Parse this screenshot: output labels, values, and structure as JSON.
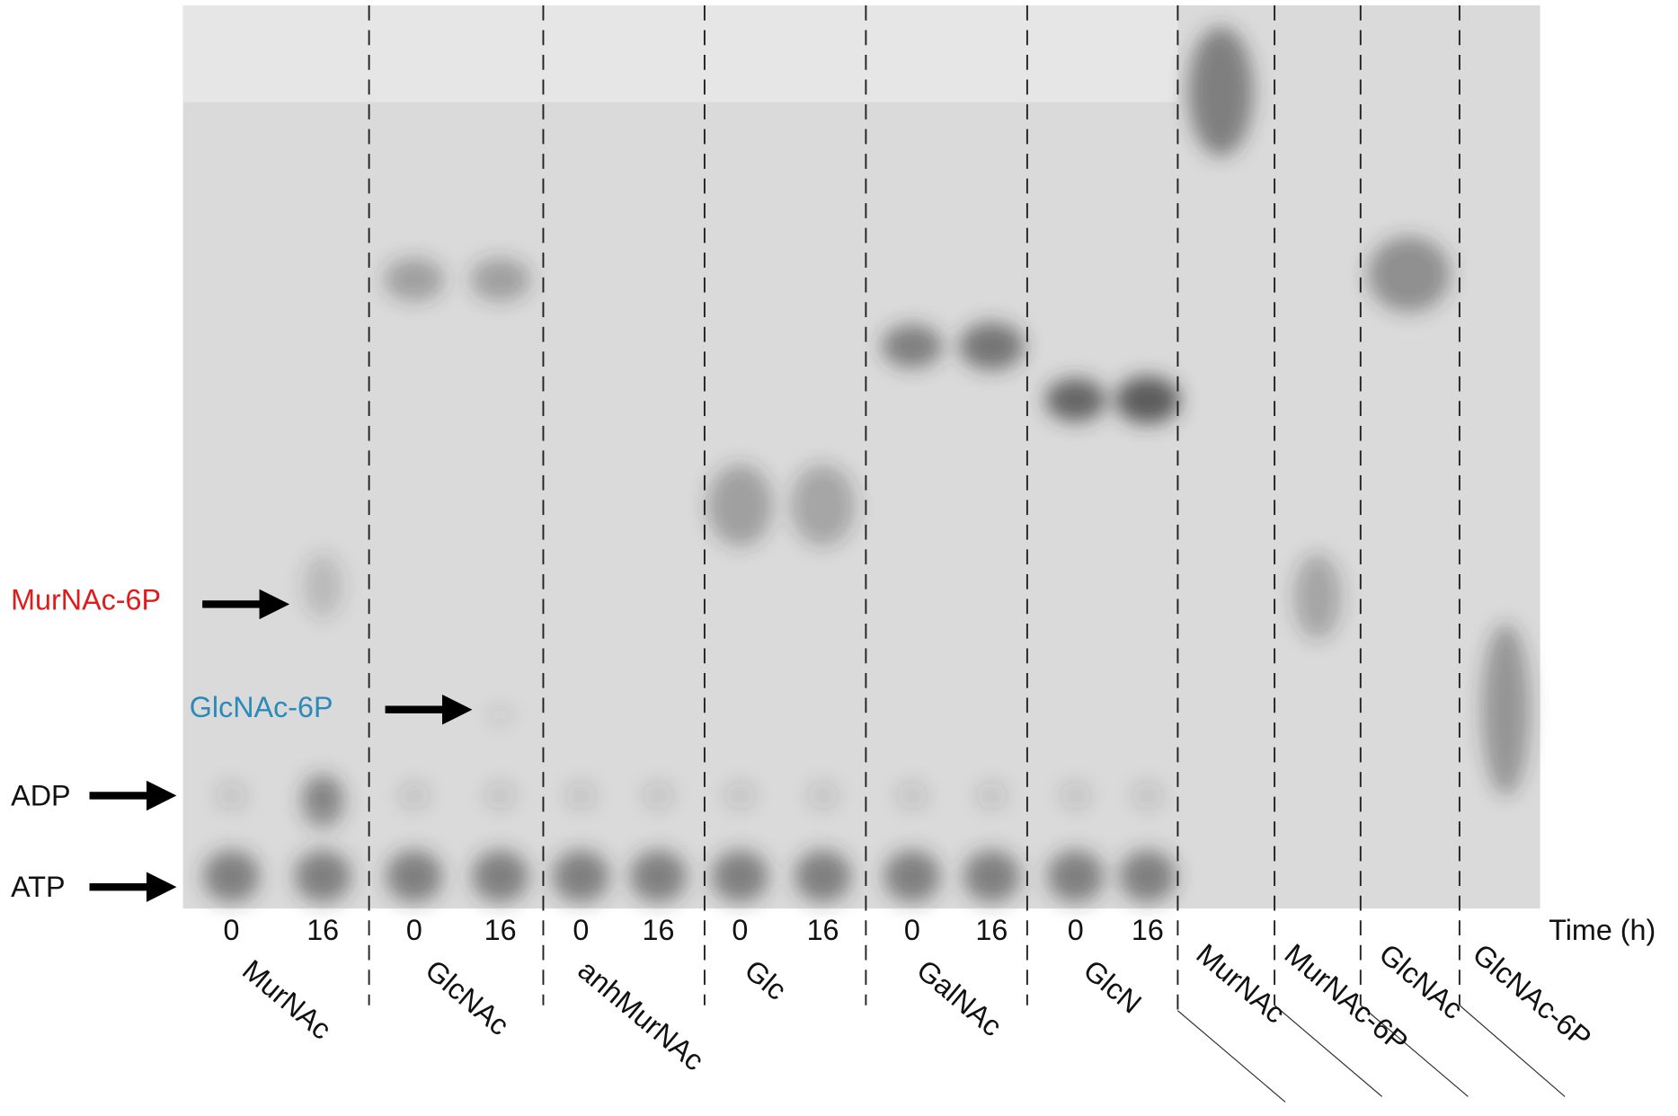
{
  "arrow_labels": [
    "MurNAc-6P",
    "GlcNAc-6P",
    "ADP",
    "ATP"
  ],
  "time_axis": {
    "label": "Time (h)",
    "groups": [
      {
        "times": [
          "0",
          "16"
        ],
        "substrate": "MurNAc"
      },
      {
        "times": [
          "0",
          "16"
        ],
        "substrate": "GlcNAc"
      },
      {
        "times": [
          "0",
          "16"
        ],
        "substrate": "anhMurNAc"
      },
      {
        "times": [
          "0",
          "16"
        ],
        "substrate": "Glc"
      },
      {
        "times": [
          "0",
          "16"
        ],
        "substrate": "GalNAc"
      },
      {
        "times": [
          "0",
          "16"
        ],
        "substrate": "GlcN"
      }
    ]
  },
  "standards": [
    "MurNAc",
    "MurNAc-6P",
    "GlcNAc",
    "GlcNAc-6P"
  ]
}
